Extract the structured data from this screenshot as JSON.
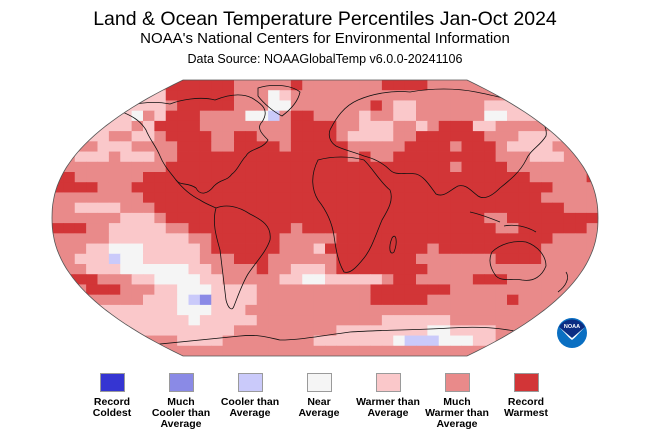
{
  "header": {
    "title": "Land & Ocean Temperature Percentiles Jan-Oct 2024",
    "subtitle": "NOAA's National Centers for Environmental Information",
    "source": "Data Source: NOAAGlobalTemp v6.0.0-20241106"
  },
  "logo": {
    "text": "NOAA",
    "primary": "#0a6fc2",
    "dark": "#0c2d83"
  },
  "legend": [
    {
      "key": "record_coldest",
      "label": "Record\nColdest",
      "color": "#3535d2"
    },
    {
      "key": "much_cooler",
      "label": "Much\nCooler than\nAverage",
      "color": "#8a8ae6"
    },
    {
      "key": "cooler",
      "label": "Cooler than\nAverage",
      "color": "#cacafa"
    },
    {
      "key": "near",
      "label": "Near\nAverage",
      "color": "#f5f5f5"
    },
    {
      "key": "warmer",
      "label": "Warmer than\nAverage",
      "color": "#fac8ca"
    },
    {
      "key": "much_warmer",
      "label": "Much\nWarmer than\nAverage",
      "color": "#e98a8a"
    },
    {
      "key": "record_warmest",
      "label": "Record\nWarmest",
      "color": "#d23537"
    }
  ],
  "chart_data": {
    "type": "heatmap",
    "title": "Land & Ocean Temperature Percentiles Jan-Oct 2024",
    "projection": "Robinson",
    "period": "Jan-Oct 2024",
    "categories": [
      "Record Coldest",
      "Much Cooler than Average",
      "Cooler than Average",
      "Near Average",
      "Warmer than Average",
      "Much Warmer than Average",
      "Record Warmest"
    ],
    "category_codes": {
      "0": "Record Coldest",
      "1": "Much Cooler than Average",
      "2": "Cooler than Average",
      "3": "Near Average",
      "4": "Warmer than Average",
      "5": "Much Warmer than Average",
      "6": "Record Warmest"
    },
    "grid_note": "Approximate coarse grid, rows north (top) to south (bottom), columns west (180W) to east (180E); each char = category code",
    "grid": [
      "555555555566666655555655555556666555555555555555",
      "555555554466666655534555555555555555555555555555",
      "555554444456666655533555555565445555554444555555",
      "554444435466655553325665555455445555553344455555",
      "655444454666655555555666655444554566644555555555",
      "665445544566665566555666654444556666665554444555",
      "555544455556665566665666665555566665666544445555",
      "554445444556666666666666665655666666666555444555",
      "555555555566666666666666666666666665666655555555",
      "665555556666666666666666666666666666666666555556",
      "666655566666666666666666666666666666666666665555",
      "555555556666666666666666666666666666666666655555",
      "554444555666666666666666666666666666666666666555",
      "555555444566666666666666666666666666665566666666",
      "666554444455666666666566666666666666666556666665",
      "555554444444556666665555566666666666666666665555",
      "555443334444456666665554666666666566666666655555",
      "554442334444455566655555566666665555555666655555",
      "555444333333445555655444566666666555555555555555",
      "566655544333344555554433444445665555566655555555",
      "555666555443334444555555555566666665555555555555",
      "555555554443214444555555555566666555555565555555",
      "555444444443334445555555555555555555555555555555",
      "554444444444344444555555555554444445555555555555",
      "555554444444444455555555544444444334444555555555",
      "555555555554444555555554444444322233344555555555",
      "555555555555555555555555555555555555555555555555"
    ]
  }
}
